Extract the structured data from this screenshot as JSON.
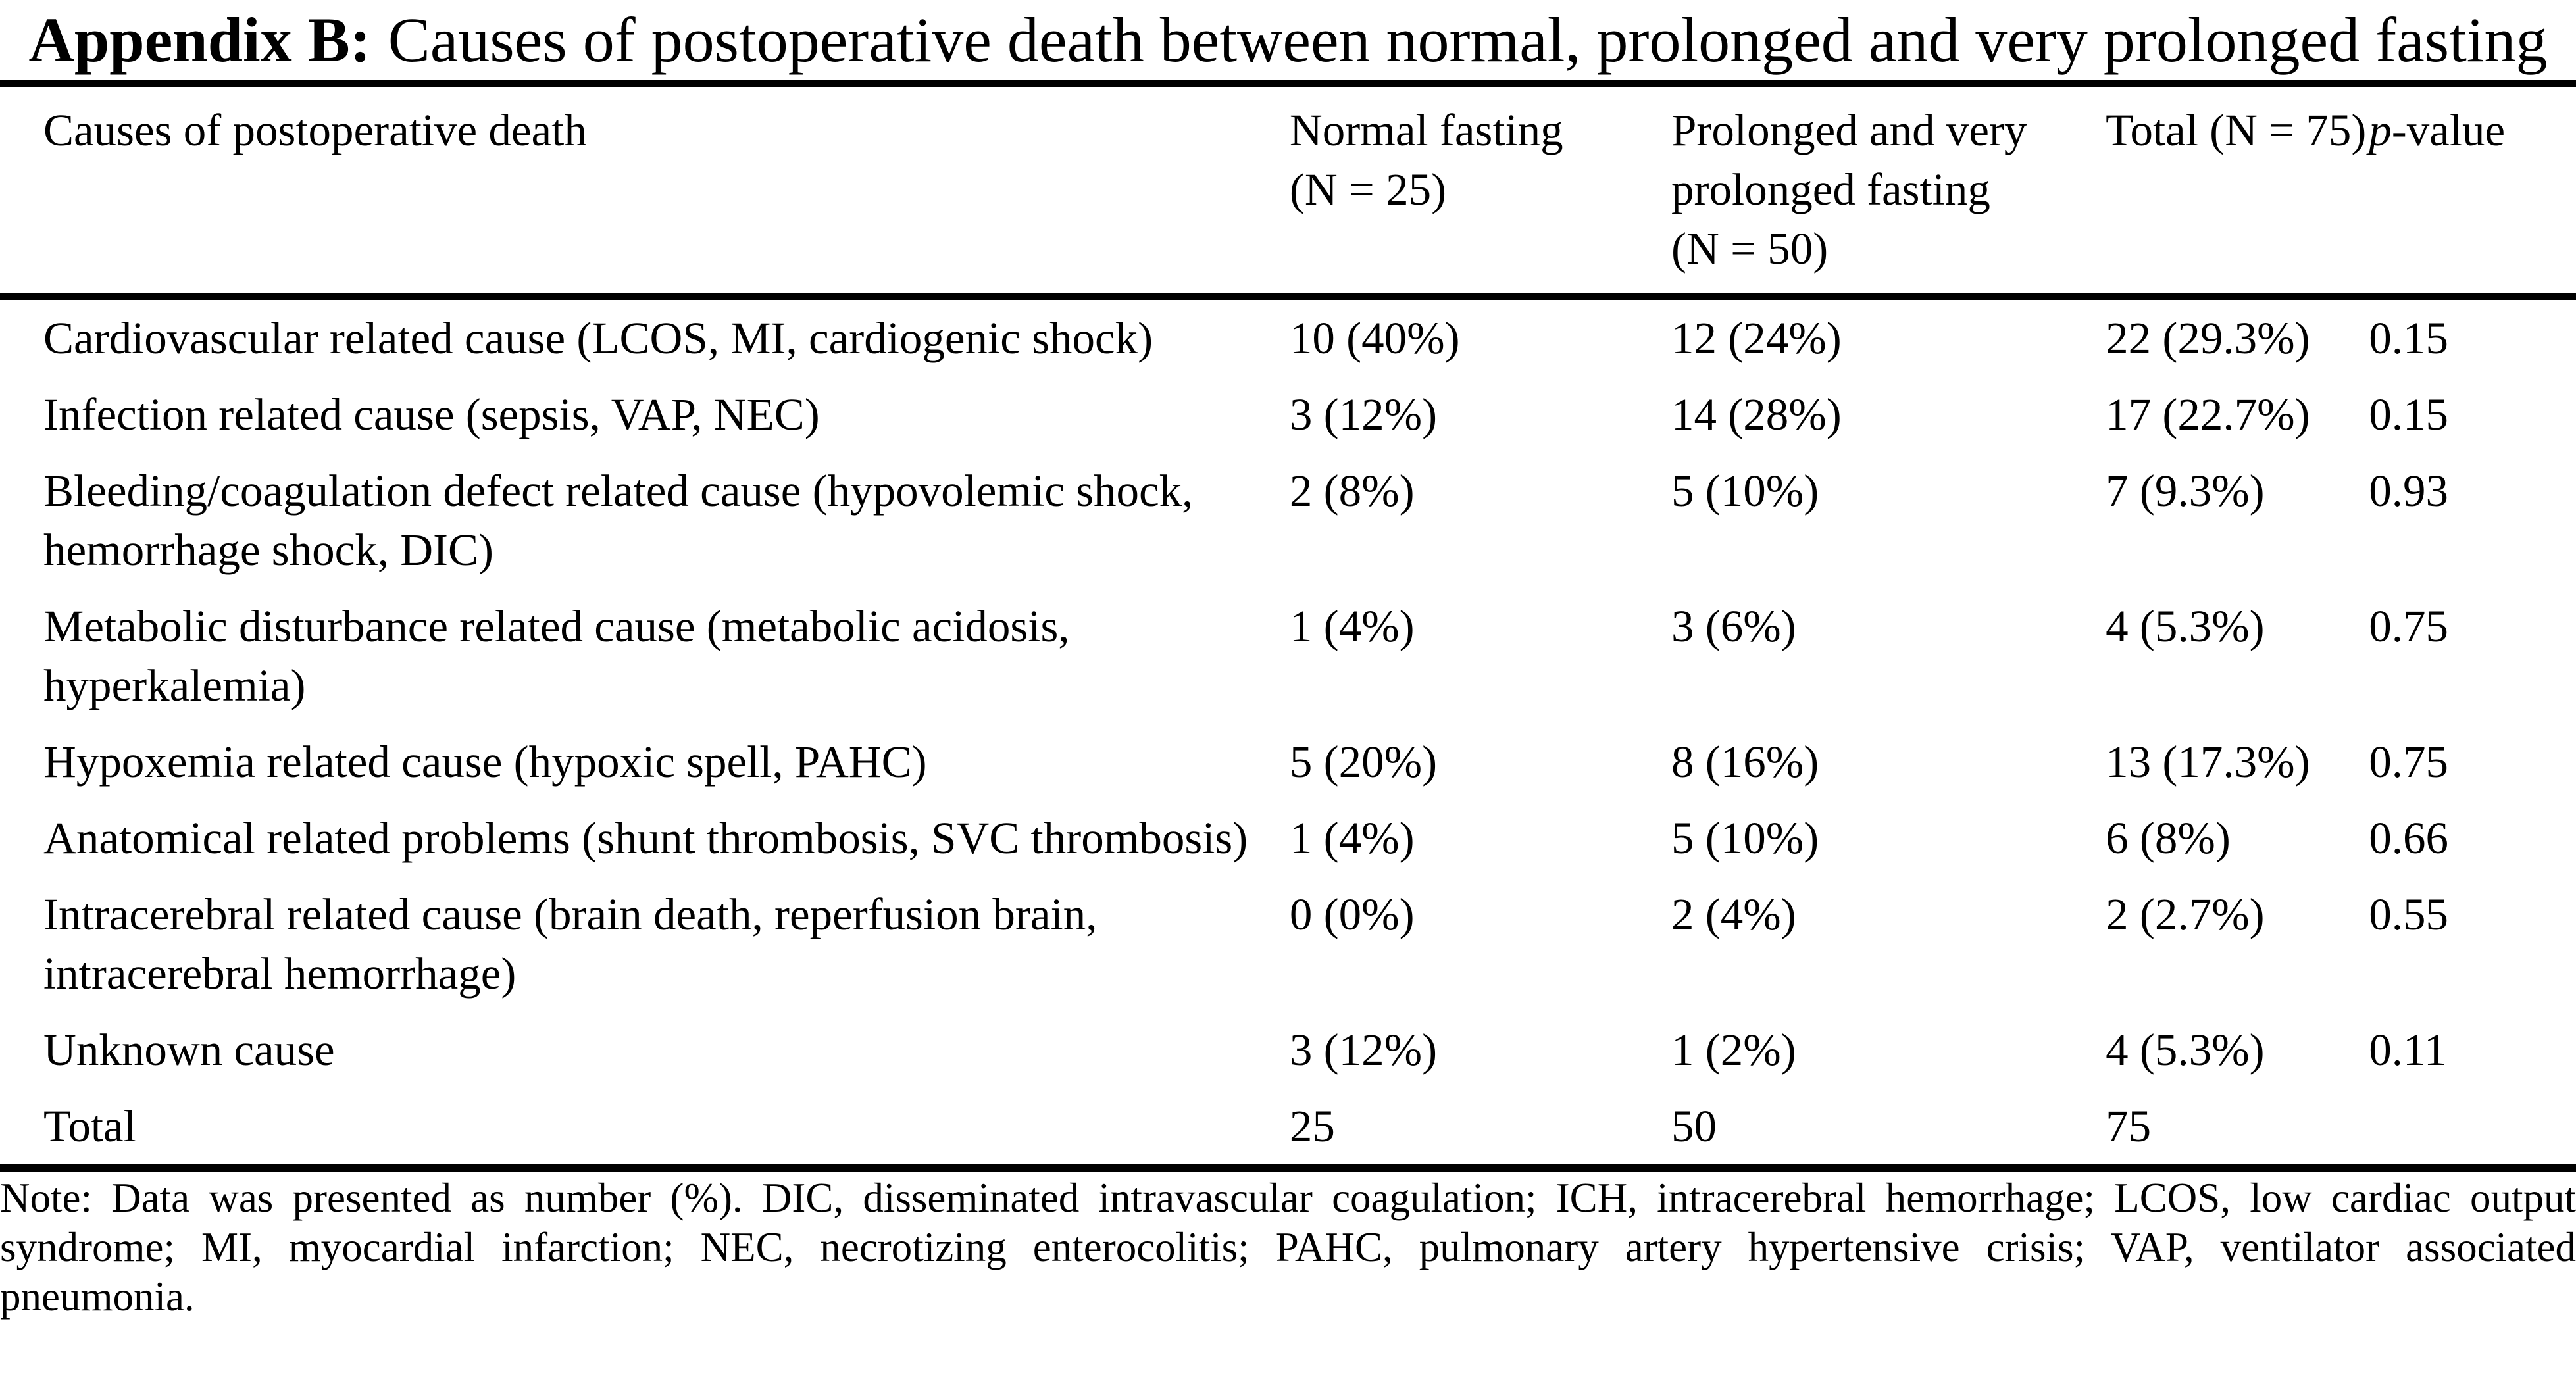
{
  "colors": {
    "background": "#ffffff",
    "text": "#000000",
    "rule": "#000000"
  },
  "title": {
    "label": "Appendix B:",
    "text": "Causes of postoperative death between normal, prolonged and very prolonged fasting"
  },
  "table": {
    "headers": {
      "causes": "Causes of postoperative death",
      "normal": "Normal fasting (N = 25)",
      "prolonged": "Prolonged and very prolonged fasting (N = 50)",
      "total": "Total (N = 75)",
      "p_italic": "p",
      "p_rest": "-value"
    },
    "rows": [
      {
        "cause": "Cardiovascular related cause (LCOS, MI, cardiogenic shock)",
        "normal": "10 (40%)",
        "prolonged": "12 (24%)",
        "total": "22 (29.3%)",
        "p": "0.15"
      },
      {
        "cause": "Infection related cause (sepsis, VAP, NEC)",
        "normal": "3 (12%)",
        "prolonged": "14 (28%)",
        "total": "17 (22.7%)",
        "p": "0.15"
      },
      {
        "cause": "Bleeding/coagulation defect related cause (hypovolemic shock, hemorrhage shock, DIC)",
        "normal": "2 (8%)",
        "prolonged": "5 (10%)",
        "total": "7 (9.3%)",
        "p": "0.93"
      },
      {
        "cause": "Metabolic disturbance related cause (metabolic acidosis, hyperkalemia)",
        "normal": "1 (4%)",
        "prolonged": "3 (6%)",
        "total": "4 (5.3%)",
        "p": "0.75"
      },
      {
        "cause": "Hypoxemia related cause (hypoxic spell, PAHC)",
        "normal": "5 (20%)",
        "prolonged": "8 (16%)",
        "total": "13 (17.3%)",
        "p": "0.75"
      },
      {
        "cause": "Anatomical related problems (shunt thrombosis, SVC thrombosis)",
        "normal": "1 (4%)",
        "prolonged": "5 (10%)",
        "total": "6 (8%)",
        "p": "0.66"
      },
      {
        "cause": "Intracerebral related cause (brain death, reperfusion brain, intracerebral hemorrhage)",
        "normal": "0 (0%)",
        "prolonged": "2 (4%)",
        "total": "2 (2.7%)",
        "p": "0.55"
      },
      {
        "cause": "Unknown cause",
        "normal": "3 (12%)",
        "prolonged": "1 (2%)",
        "total": "4 (5.3%)",
        "p": "0.11"
      },
      {
        "cause": "Total",
        "normal": "25",
        "prolonged": "50",
        "total": "75",
        "p": ""
      }
    ]
  },
  "note": {
    "full_text": "Note: Data was presented as number (%). DIC, disseminated intravascular coagulation; ICH, intracerebral hemorrhage; LCOS, low cardiac output syndrome; MI, myocardial infarction; NEC, necrotizing enterocolitis; PAHC, pulmonary artery hypertensive crisis; VAP, ventilator associated pneumonia.",
    "line1": "Note: Data was presented as number (%). DIC, disseminated intravascular coagulation; ICH, intracerebral hemorrhage; LCOS, low cardiac output",
    "line2": "syndrome; MI, myocardial infarction; NEC, necrotizing enterocolitis; PAHC, pulmonary artery hypertensive crisis; VAP, ventilator associated",
    "line3": "pneumonia."
  }
}
